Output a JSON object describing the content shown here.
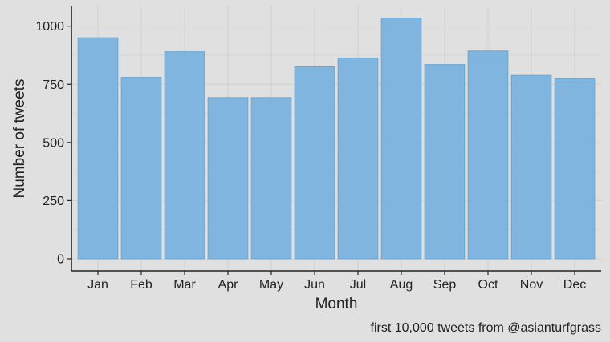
{
  "chart_data": {
    "type": "bar",
    "categories": [
      "Jan",
      "Feb",
      "Mar",
      "Apr",
      "May",
      "Jun",
      "Jul",
      "Aug",
      "Sep",
      "Oct",
      "Nov",
      "Dec"
    ],
    "values": [
      950,
      780,
      890,
      693,
      693,
      825,
      863,
      1035,
      835,
      893,
      788,
      773
    ],
    "xlabel": "Month",
    "ylabel": "Number of tweets",
    "caption": "first 10,000 tweets from @asianturfgrass",
    "ylim": [
      0,
      1085
    ],
    "yticks": [
      0,
      250,
      500,
      750,
      1000
    ],
    "grid": true,
    "colors": {
      "bar_fill": "#7fb5de",
      "bar_stroke": "#6fa6d0",
      "background": "#e0e0e0",
      "grid": "#cfcfcf",
      "axis": "#222222"
    }
  }
}
